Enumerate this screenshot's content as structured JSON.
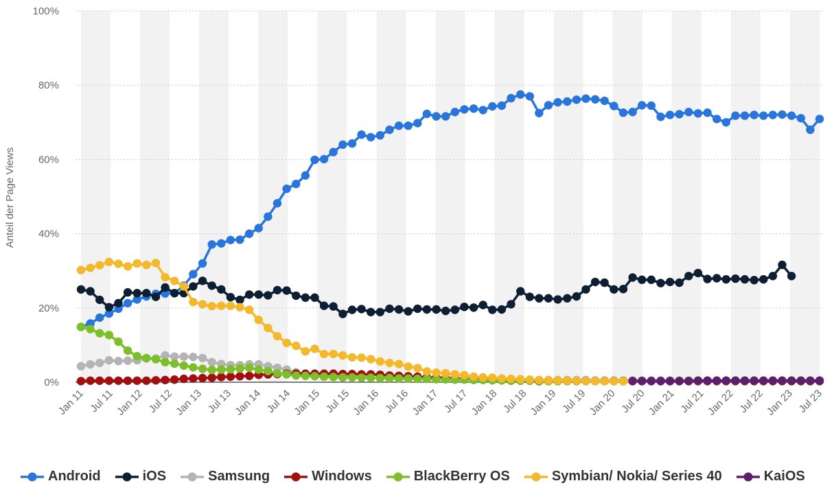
{
  "chart_data": {
    "type": "line",
    "ylabel": "Anteil der Page Views",
    "ylim": [
      0,
      100
    ],
    "yticks": [
      0,
      20,
      40,
      60,
      80,
      100
    ],
    "ytick_labels": [
      "0%",
      "20%",
      "40%",
      "60%",
      "80%",
      "100%"
    ],
    "x_tick_labels": [
      "Jan 11",
      "Jul 11",
      "Jan 12",
      "Jul 12",
      "Jan 13",
      "Jul 13",
      "Jan 14",
      "Jul 14",
      "Jan 15",
      "Jul 15",
      "Jan 16",
      "Jul 16",
      "Jan 17",
      "Jul 17",
      "Jan 18",
      "Jul 18",
      "Jan 19",
      "Jul 19",
      "Jan 20",
      "Jul 20",
      "Jan 21",
      "Jul 21",
      "Jan 22",
      "Jul 22",
      "Jan 23",
      "Jul 23"
    ],
    "x_start": "2011-01",
    "x_end": "2023-07",
    "grid": "horizontal dotted, alternating vertical bands",
    "legend_position": "bottom",
    "series": [
      {
        "name": "Android",
        "color": "#2876dd",
        "values": [
          14.9,
          15.8,
          17.4,
          18.5,
          19.8,
          21.3,
          22.3,
          23.1,
          23.8,
          23.9,
          24.0,
          26.0,
          29.1,
          32.0,
          37.1,
          37.4,
          38.3,
          38.4,
          40.0,
          41.5,
          44.6,
          48.2,
          52.1,
          53.4,
          55.7,
          59.9,
          60.1,
          62.0,
          64.0,
          64.3,
          66.7,
          66.0,
          66.5,
          68.0,
          69.1,
          69.1,
          69.8,
          72.3,
          71.6,
          71.6,
          72.8,
          73.5,
          73.7,
          73.3,
          74.3,
          74.5,
          76.5,
          77.5,
          77.0,
          72.5,
          74.6,
          75.4,
          75.6,
          76.1,
          76.4,
          76.2,
          75.8,
          74.4,
          72.6,
          72.8,
          74.6,
          74.5,
          71.5,
          72.0,
          72.2,
          72.8,
          72.4,
          72.6,
          70.9,
          70.0,
          71.8,
          71.8,
          72.0,
          71.8,
          72.0,
          72.1,
          71.8,
          71.1,
          68.0,
          70.9
        ]
      },
      {
        "name": "iOS",
        "color": "#0d1f33",
        "values": [
          25.0,
          24.5,
          22.2,
          20.2,
          21.3,
          24.2,
          24.0,
          24.0,
          23.0,
          25.5,
          24.0,
          24.0,
          25.8,
          27.3,
          26.0,
          25.0,
          22.9,
          22.2,
          23.6,
          23.6,
          23.4,
          24.8,
          24.7,
          23.3,
          22.8,
          22.8,
          20.6,
          20.4,
          18.4,
          19.5,
          19.7,
          18.9,
          18.9,
          19.8,
          19.6,
          19.1,
          19.8,
          19.6,
          19.6,
          19.2,
          19.5,
          20.3,
          20.1,
          20.8,
          19.5,
          19.6,
          21.0,
          24.5,
          23.0,
          22.6,
          22.6,
          22.3,
          22.6,
          23.1,
          25.0,
          27.0,
          26.8,
          25.0,
          25.1,
          28.2,
          27.6,
          27.6,
          26.7,
          27.0,
          26.8,
          28.6,
          29.4,
          27.8,
          28.0,
          27.7,
          27.9,
          27.7,
          27.5,
          27.7,
          28.6,
          31.6,
          28.6
        ]
      },
      {
        "name": "Samsung",
        "color": "#b4b4b4",
        "values": [
          4.3,
          4.8,
          5.2,
          5.9,
          5.7,
          5.8,
          5.9,
          6.4,
          6.4,
          7.2,
          6.9,
          6.9,
          6.8,
          6.5,
          5.4,
          4.9,
          4.6,
          4.6,
          4.8,
          4.8,
          4.3,
          3.9,
          3.4,
          2.7,
          2.3,
          2.0,
          1.8,
          1.6,
          1.5,
          1.4,
          1.3,
          1.2,
          1.2,
          1.1,
          1.1,
          1.0,
          1.0,
          0.9,
          0.9,
          0.9,
          0.8,
          0.8,
          0.7,
          0.7,
          0.7,
          0.6,
          0.6,
          0.6,
          0.6,
          0.6,
          0.6,
          0.6,
          0.6,
          0.6,
          0.6,
          0.5,
          0.5,
          0.5,
          0.5,
          0.5,
          0.5,
          0.5,
          0.5,
          0.5,
          0.5,
          0.5,
          0.5,
          0.5,
          0.5,
          0.5,
          0.5,
          0.5,
          0.5,
          0.5,
          0.5,
          0.5,
          0.5,
          0.5,
          0.5,
          0.5
        ]
      },
      {
        "name": "Windows",
        "color": "#a30e0e",
        "values": [
          0.3,
          0.4,
          0.4,
          0.4,
          0.4,
          0.4,
          0.4,
          0.4,
          0.5,
          0.6,
          0.7,
          0.9,
          1.0,
          1.1,
          1.2,
          1.4,
          1.5,
          1.6,
          1.7,
          2.0,
          2.1,
          2.2,
          2.3,
          2.3,
          2.3,
          2.3,
          2.3,
          2.3,
          2.2,
          2.2,
          2.1,
          2.1,
          2.0,
          1.8,
          1.7,
          1.6,
          1.5,
          1.3,
          1.2,
          1.1,
          1.0,
          0.9,
          0.8,
          0.7,
          0.6,
          0.5,
          0.4,
          0.4,
          0.4,
          0.3,
          0.3,
          0.3,
          0.3,
          0.3,
          0.3,
          0.3,
          0.3,
          0.3,
          0.3,
          0.3,
          0.3,
          0.3,
          0.3,
          0.3,
          0.3,
          0.3,
          0.3,
          0.3,
          0.3,
          0.3,
          0.3,
          0.3,
          0.3,
          0.3,
          0.3,
          0.3,
          0.3,
          0.3,
          0.3,
          0.3
        ]
      },
      {
        "name": "BlackBerry OS",
        "color": "#7cbf28",
        "values": [
          14.9,
          14.3,
          13.2,
          12.7,
          10.9,
          8.5,
          7.0,
          6.5,
          6.2,
          5.4,
          5.0,
          4.5,
          4.0,
          3.6,
          3.3,
          3.4,
          3.5,
          3.7,
          3.9,
          3.4,
          3.0,
          2.4,
          2.1,
          1.8,
          1.7,
          1.6,
          1.5,
          1.4,
          1.3,
          1.3,
          1.2,
          1.2,
          1.1,
          1.1,
          1.0,
          1.0,
          0.9,
          0.9,
          0.8,
          0.8,
          0.7,
          0.7,
          0.6,
          0.6,
          0.5,
          0.5,
          0.4,
          0.4,
          0.4,
          0.4,
          0.3,
          0.3,
          0.3,
          0.3,
          0.3,
          0.3,
          0.3,
          0.3,
          0.3,
          0.3
        ]
      },
      {
        "name": "Symbian/ Nokia/ Series 40",
        "color": "#f4b92a",
        "values": [
          30.2,
          30.8,
          31.5,
          32.4,
          31.9,
          31.2,
          32.0,
          31.6,
          32.1,
          28.3,
          27.3,
          25.8,
          21.6,
          21.0,
          20.5,
          20.6,
          20.6,
          20.2,
          19.5,
          16.8,
          14.6,
          12.4,
          10.6,
          9.8,
          8.3,
          9.0,
          7.6,
          7.6,
          7.2,
          6.7,
          6.6,
          6.2,
          5.6,
          5.2,
          4.9,
          4.2,
          3.8,
          2.9,
          2.6,
          2.4,
          2.1,
          1.9,
          1.5,
          1.3,
          1.2,
          1.0,
          0.9,
          0.8,
          0.7,
          0.6,
          0.5,
          0.5,
          0.4,
          0.4,
          0.3,
          0.3,
          0.3,
          0.3,
          0.3,
          0.3
        ]
      },
      {
        "name": "KaiOS",
        "color": "#5c1f6c",
        "values": [
          null,
          null,
          null,
          null,
          null,
          null,
          null,
          null,
          null,
          null,
          null,
          null,
          null,
          null,
          null,
          null,
          null,
          null,
          null,
          null,
          null,
          null,
          null,
          null,
          null,
          null,
          null,
          null,
          null,
          null,
          null,
          null,
          null,
          null,
          null,
          null,
          null,
          null,
          null,
          null,
          null,
          null,
          null,
          null,
          null,
          null,
          null,
          null,
          null,
          null,
          null,
          null,
          null,
          null,
          null,
          null,
          null,
          null,
          null,
          0.3,
          0.3,
          0.3,
          0.3,
          0.3,
          0.3,
          0.3,
          0.4,
          0.4,
          0.4,
          0.4,
          0.4,
          0.4,
          0.4,
          0.4,
          0.4,
          0.4,
          0.4,
          0.4,
          0.4,
          0.4
        ]
      }
    ]
  }
}
